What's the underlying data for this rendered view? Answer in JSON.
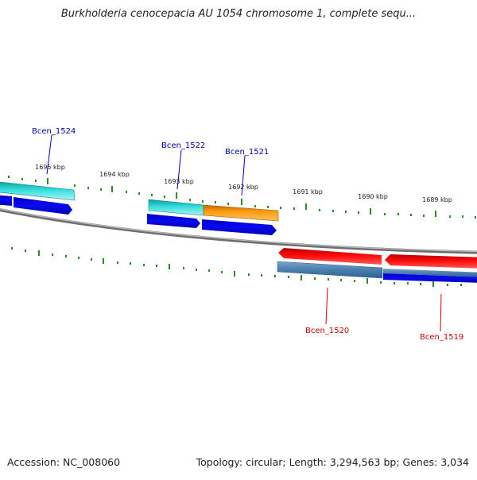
{
  "title": "Burkholderia cenocepacia AU 1054 chromosome 1, complete sequ...",
  "footer": {
    "accession": "Accession: NC_008060",
    "summary": "Topology: circular; Length: 3,294,563 bp; Genes: 3,034"
  },
  "scale_labels": [
    "1695 kbp",
    "1694 kbp",
    "1693 kbp",
    "1692 kbp",
    "1691 kbp",
    "1690 kbp",
    "1689 kbp"
  ],
  "genes": [
    {
      "name": "Bcen_1524",
      "color": "#0000aa"
    },
    {
      "name": "Bcen_1522",
      "color": "#0000aa"
    },
    {
      "name": "Bcen_1521",
      "color": "#0000aa"
    },
    {
      "name": "Bcen_1520",
      "color": "#cc0000"
    },
    {
      "name": "Bcen_1519",
      "color": "#cc0000"
    }
  ],
  "colors": {
    "backbone": "#888888",
    "tick": "#2a8a2a",
    "cyan": "#22cccc",
    "blue": "#0a0ae0",
    "orange": "#ff9a0a",
    "red": "#ee0a0a",
    "steelblue": "#4a7fae"
  }
}
